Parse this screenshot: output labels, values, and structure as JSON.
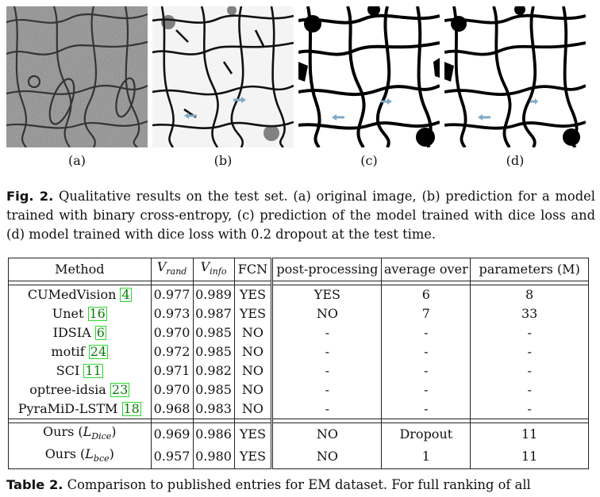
{
  "figure": {
    "panels": [
      {
        "label": "(a)",
        "kind": "em-original"
      },
      {
        "label": "(b)",
        "kind": "prediction-bce"
      },
      {
        "label": "(c)",
        "kind": "prediction-dice"
      },
      {
        "label": "(d)",
        "kind": "prediction-dice-dropout"
      }
    ],
    "caption_label": "Fig. 2.",
    "caption_text": "Qualitative results on the test set. (a) original image, (b) prediction for a model trained with binary cross-entropy, (c) prediction of the model trained with dice loss and (d) model trained with dice loss with 0.2 dropout at the test time.",
    "arrow_color": "#7fa9c9"
  },
  "table": {
    "headers": {
      "method": "Method",
      "v_rand_base": "V",
      "v_rand_sub": "rand",
      "v_info_base": "V",
      "v_info_sub": "info",
      "fcn": "FCN",
      "post_processing": "post-processing",
      "average_over": "average over",
      "parameters": "parameters (M)"
    },
    "published": [
      {
        "method": "CUMedVision",
        "ref": "4",
        "v_rand": "0.977",
        "v_info": "0.989",
        "fcn": "YES",
        "post": "YES",
        "avg": "6",
        "params": "8"
      },
      {
        "method": "Unet",
        "ref": "16",
        "v_rand": "0.973",
        "v_info": "0.987",
        "fcn": "YES",
        "post": "NO",
        "avg": "7",
        "params": "33"
      },
      {
        "method": "IDSIA",
        "ref": "6",
        "v_rand": "0.970",
        "v_info": "0.985",
        "fcn": "NO",
        "post": "-",
        "avg": "-",
        "params": "-"
      },
      {
        "method": "motif",
        "ref": "24",
        "v_rand": "0.972",
        "v_info": "0.985",
        "fcn": "NO",
        "post": "-",
        "avg": "-",
        "params": "-"
      },
      {
        "method": "SCI",
        "ref": "11",
        "v_rand": "0.971",
        "v_info": "0.982",
        "fcn": "NO",
        "post": "-",
        "avg": "-",
        "params": "-"
      },
      {
        "method": "optree-idsia",
        "ref": "23",
        "v_rand": "0.970",
        "v_info": "0.985",
        "fcn": "NO",
        "post": "-",
        "avg": "-",
        "params": "-"
      },
      {
        "method": "PyraMiD-LSTM",
        "ref": "18",
        "v_rand": "0.968",
        "v_info": "0.983",
        "fcn": "NO",
        "post": "-",
        "avg": "-",
        "params": "-"
      }
    ],
    "ours": [
      {
        "method": "Ours",
        "loss_base": "L",
        "loss_sub": "Dice",
        "v_rand": "0.969",
        "v_info": "0.986",
        "fcn": "YES",
        "post": "NO",
        "avg": "Dropout",
        "params": "11"
      },
      {
        "method": "Ours",
        "loss_base": "L",
        "loss_sub": "bce",
        "v_rand": "0.957",
        "v_info": "0.980",
        "fcn": "YES",
        "post": "NO",
        "avg": "1",
        "params": "11"
      }
    ],
    "ref_border_color": "#2bd62b",
    "caption_label": "Table 2.",
    "caption_text": "Comparison to published entries for EM dataset. For full ranking of all"
  }
}
